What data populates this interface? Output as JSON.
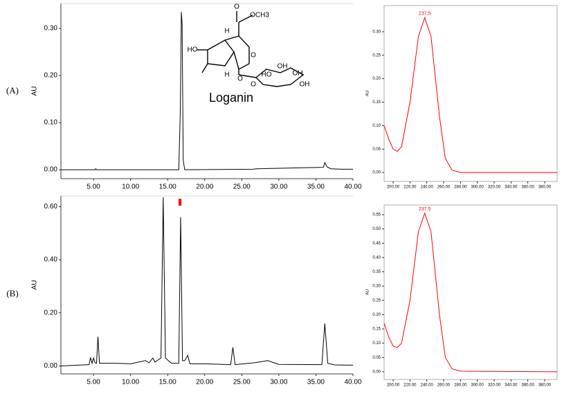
{
  "panels": [
    "(A)",
    "(B)"
  ],
  "structure": {
    "name": "Loganin",
    "atoms": [
      "OCH3",
      "O",
      "HO",
      "H",
      "O",
      "H",
      "O",
      "HO",
      "OH",
      "OH",
      "OH",
      "O"
    ]
  },
  "chart_data": [
    {
      "type": "line",
      "y_label": "AU",
      "x": [
        0.6,
        5.2,
        5.3,
        5.4,
        16.5,
        16.7,
        16.85,
        16.95,
        17.1,
        17.3,
        26.5,
        27,
        36,
        36.2,
        36.5,
        37,
        38.5,
        40
      ],
      "series": [
        {
          "color": "#000000",
          "values": [
            0,
            0,
            0.002,
            0,
            0,
            0.12,
            0.335,
            0.31,
            0.02,
            0,
            0.001,
            0.002,
            0.005,
            0.015,
            0.006,
            0.002,
            0.001,
            0.001
          ]
        }
      ],
      "xlim": [
        0.6,
        40
      ],
      "ylim": [
        -0.019,
        0.353
      ],
      "xticks": [
        {
          "value": 5,
          "label": "5.00"
        },
        {
          "value": 10,
          "label": "10.00"
        },
        {
          "value": 15,
          "label": "15.00"
        },
        {
          "value": 20,
          "label": "20.00"
        },
        {
          "value": 25,
          "label": "25.00"
        },
        {
          "value": 30,
          "label": "30.00"
        },
        {
          "value": 35,
          "label": "35.00"
        },
        {
          "value": 40,
          "label": "40.00"
        }
      ],
      "yticks": [
        {
          "value": 0,
          "label": "0.00"
        },
        {
          "value": 0.1,
          "label": "0.10"
        },
        {
          "value": 0.2,
          "label": "0.20"
        },
        {
          "value": 0.3,
          "label": "0.30"
        }
      ]
    },
    {
      "type": "line",
      "y_label": "AU",
      "x": [
        0.6,
        4.4,
        4.6,
        4.8,
        5.0,
        5.2,
        5.4,
        5.6,
        5.8,
        8,
        10,
        12,
        12.5,
        13,
        13.3,
        14.1,
        14.4,
        14.7,
        15.5,
        16.5,
        16.75,
        17.0,
        17.3,
        17.7,
        18.0,
        20,
        23.5,
        23.8,
        24.1,
        26.7,
        28.5,
        30,
        35.8,
        36.2,
        36.6,
        37.5,
        40
      ],
      "series": [
        {
          "color": "#000000",
          "values": [
            0,
            0.005,
            0.032,
            0.01,
            0.03,
            0.012,
            0.01,
            0.11,
            0.01,
            0.01,
            0.008,
            0.02,
            0.012,
            0.03,
            0.015,
            0.03,
            0.635,
            0.03,
            0.01,
            0.01,
            0.56,
            0.02,
            0.02,
            0.04,
            0.008,
            0.008,
            0.005,
            0.07,
            0.005,
            0.012,
            0.02,
            0.006,
            0.005,
            0.16,
            0.01,
            0.004,
            0.003
          ]
        }
      ],
      "xlim": [
        0.6,
        40
      ],
      "ylim": [
        -0.03,
        0.64
      ],
      "xticks": [
        {
          "value": 5,
          "label": "5.00"
        },
        {
          "value": 10,
          "label": "10.00"
        },
        {
          "value": 15,
          "label": "15.00"
        },
        {
          "value": 20,
          "label": "20.00"
        },
        {
          "value": 25,
          "label": "25.00"
        },
        {
          "value": 30,
          "label": "30.00"
        },
        {
          "value": 35,
          "label": "35.00"
        },
        {
          "value": 40,
          "label": "40.00"
        }
      ],
      "yticks": [
        {
          "value": 0,
          "label": "0.00"
        },
        {
          "value": 0.2,
          "label": "0.20"
        },
        {
          "value": 0.4,
          "label": "0.40"
        },
        {
          "value": 0.6,
          "label": "0.60"
        }
      ]
    },
    {
      "type": "line",
      "y_label": "AU",
      "peak_label": "237.5",
      "x": [
        189.3,
        195,
        200,
        205,
        210,
        220,
        230,
        237.5,
        245,
        255,
        262,
        270,
        280,
        394.8
      ],
      "series": [
        {
          "color": "#ff0000",
          "values": [
            0.1,
            0.07,
            0.05,
            0.045,
            0.055,
            0.15,
            0.29,
            0.33,
            0.29,
            0.12,
            0.03,
            0.005,
            0,
            0
          ]
        }
      ],
      "xlim": [
        189.3,
        394.8
      ],
      "ylim": [
        -0.019,
        0.356
      ],
      "xticks": [
        {
          "value": 200,
          "label": "200.00"
        },
        {
          "value": 220,
          "label": "220.00"
        },
        {
          "value": 240,
          "label": "240.00"
        },
        {
          "value": 260,
          "label": "260.00"
        },
        {
          "value": 280,
          "label": "280.00"
        },
        {
          "value": 300,
          "label": "300.00"
        },
        {
          "value": 320,
          "label": "320.00"
        },
        {
          "value": 340,
          "label": "340.00"
        },
        {
          "value": 360,
          "label": "360.00"
        },
        {
          "value": 380,
          "label": "380.00"
        }
      ],
      "yticks": [
        {
          "value": 0,
          "label": "0.00"
        },
        {
          "value": 0.05,
          "label": "0.05"
        },
        {
          "value": 0.1,
          "label": "0.10"
        },
        {
          "value": 0.15,
          "label": "0.15"
        },
        {
          "value": 0.2,
          "label": "0.20"
        },
        {
          "value": 0.25,
          "label": "0.25"
        },
        {
          "value": 0.3,
          "label": "0.30"
        }
      ]
    },
    {
      "type": "line",
      "y_label": "AU",
      "peak_label": "237.5",
      "x": [
        189.3,
        195,
        200,
        205,
        210,
        220,
        230,
        237.5,
        245,
        255,
        262,
        270,
        280,
        394.8
      ],
      "series": [
        {
          "color": "#ff0000",
          "values": [
            0.17,
            0.12,
            0.09,
            0.085,
            0.1,
            0.25,
            0.49,
            0.555,
            0.49,
            0.2,
            0.05,
            0.01,
            0.002,
            0
          ]
        }
      ],
      "xlim": [
        189.3,
        394.8
      ],
      "ylim": [
        -0.027,
        0.584
      ],
      "xticks": [
        {
          "value": 200,
          "label": "200.00"
        },
        {
          "value": 220,
          "label": "220.00"
        },
        {
          "value": 240,
          "label": "240.00"
        },
        {
          "value": 260,
          "label": "260.00"
        },
        {
          "value": 280,
          "label": "280.00"
        },
        {
          "value": 300,
          "label": "300.00"
        },
        {
          "value": 320,
          "label": "320.00"
        },
        {
          "value": 340,
          "label": "340.00"
        },
        {
          "value": 360,
          "label": "360.00"
        },
        {
          "value": 380,
          "label": "380.00"
        }
      ],
      "yticks": [
        {
          "value": 0,
          "label": "0.00"
        },
        {
          "value": 0.05,
          "label": "0.05"
        },
        {
          "value": 0.1,
          "label": "0.10"
        },
        {
          "value": 0.15,
          "label": "0.15"
        },
        {
          "value": 0.2,
          "label": "0.20"
        },
        {
          "value": 0.25,
          "label": "0.25"
        },
        {
          "value": 0.3,
          "label": "0.30"
        },
        {
          "value": 0.35,
          "label": "0.35"
        },
        {
          "value": 0.4,
          "label": "0.40"
        },
        {
          "value": 0.45,
          "label": "0.45"
        },
        {
          "value": 0.5,
          "label": "0.50"
        },
        {
          "value": 0.55,
          "label": "0.55"
        }
      ]
    }
  ]
}
